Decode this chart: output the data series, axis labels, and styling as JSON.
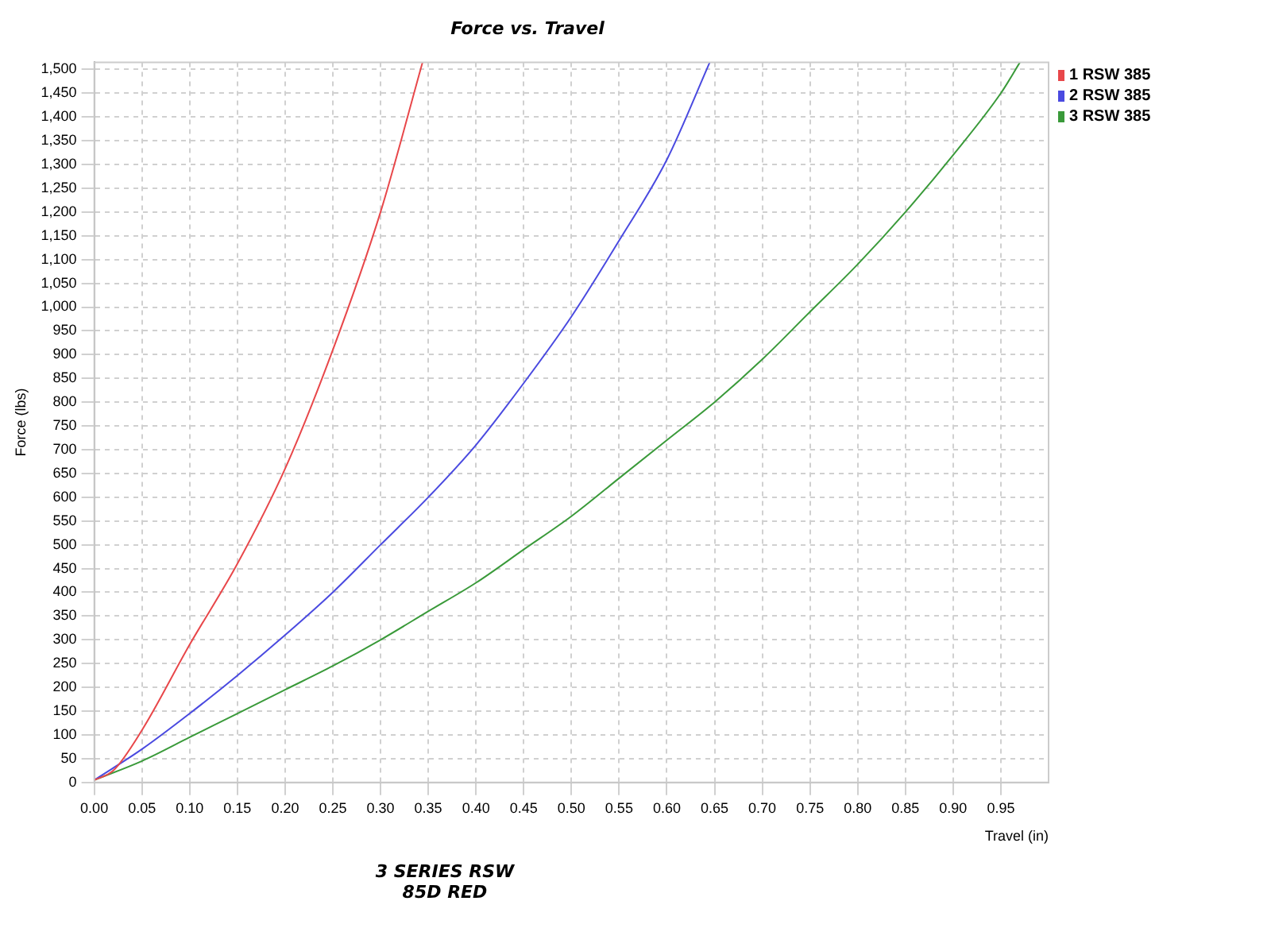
{
  "chart_data": {
    "type": "line",
    "title": "Force vs. Travel",
    "xlabel": "Travel (in)",
    "ylabel": "Force (lbs)",
    "annotations": [
      "3 SERIES RSW",
      "85D RED"
    ],
    "xlim": [
      0,
      1.0
    ],
    "ylim": [
      0,
      1515
    ],
    "xticks": [
      {
        "value": 0,
        "label": "0.00"
      },
      {
        "value": 0.05,
        "label": "0.05"
      },
      {
        "value": 0.1,
        "label": "0.10"
      },
      {
        "value": 0.15,
        "label": "0.15"
      },
      {
        "value": 0.2,
        "label": "0.20"
      },
      {
        "value": 0.25,
        "label": "0.25"
      },
      {
        "value": 0.3,
        "label": "0.30"
      },
      {
        "value": 0.35,
        "label": "0.35"
      },
      {
        "value": 0.4,
        "label": "0.40"
      },
      {
        "value": 0.45,
        "label": "0.45"
      },
      {
        "value": 0.5,
        "label": "0.50"
      },
      {
        "value": 0.55,
        "label": "0.55"
      },
      {
        "value": 0.6,
        "label": "0.60"
      },
      {
        "value": 0.65,
        "label": "0.65"
      },
      {
        "value": 0.7,
        "label": "0.70"
      },
      {
        "value": 0.75,
        "label": "0.75"
      },
      {
        "value": 0.8,
        "label": "0.80"
      },
      {
        "value": 0.85,
        "label": "0.85"
      },
      {
        "value": 0.9,
        "label": "0.90"
      },
      {
        "value": 0.95,
        "label": "0.95"
      }
    ],
    "yticks": [
      0,
      50,
      100,
      150,
      200,
      250,
      300,
      350,
      400,
      450,
      500,
      550,
      600,
      650,
      700,
      750,
      800,
      850,
      900,
      950,
      {
        "value": 1000,
        "label": "1,000"
      },
      {
        "value": 1050,
        "label": "1,050"
      },
      {
        "value": 1100,
        "label": "1,100"
      },
      {
        "value": 1150,
        "label": "1,150"
      },
      {
        "value": 1200,
        "label": "1,200"
      },
      {
        "value": 1250,
        "label": "1,250"
      },
      {
        "value": 1300,
        "label": "1,300"
      },
      {
        "value": 1350,
        "label": "1,350"
      },
      {
        "value": 1400,
        "label": "1,400"
      },
      {
        "value": 1450,
        "label": "1,450"
      },
      {
        "value": 1500,
        "label": "1,500"
      }
    ],
    "grid": true,
    "legend": "top right",
    "marker": "none",
    "line_style": "solid",
    "series": [
      {
        "name": "1 RSW 385",
        "color": "#e8474a",
        "x": [
          0,
          0.02,
          0.05,
          0.1,
          0.15,
          0.2,
          0.25,
          0.3,
          0.344
        ],
        "values": [
          5,
          25,
          110,
          290,
          460,
          660,
          910,
          1200,
          1515
        ]
      },
      {
        "name": "2 RSW 385",
        "color": "#4a4ae0",
        "x": [
          0,
          0.05,
          0.1,
          0.15,
          0.2,
          0.25,
          0.3,
          0.35,
          0.4,
          0.45,
          0.5,
          0.55,
          0.6,
          0.645
        ],
        "values": [
          5,
          70,
          145,
          225,
          310,
          400,
          500,
          600,
          710,
          840,
          980,
          1140,
          1310,
          1515
        ]
      },
      {
        "name": "3 RSW 385",
        "color": "#3a9a3a",
        "x": [
          0,
          0.05,
          0.1,
          0.15,
          0.2,
          0.25,
          0.3,
          0.35,
          0.4,
          0.45,
          0.5,
          0.55,
          0.6,
          0.65,
          0.7,
          0.75,
          0.8,
          0.85,
          0.9,
          0.95,
          0.97
        ],
        "values": [
          5,
          45,
          95,
          145,
          195,
          245,
          300,
          360,
          420,
          490,
          560,
          640,
          720,
          800,
          890,
          990,
          1090,
          1200,
          1320,
          1450,
          1515
        ]
      }
    ]
  }
}
